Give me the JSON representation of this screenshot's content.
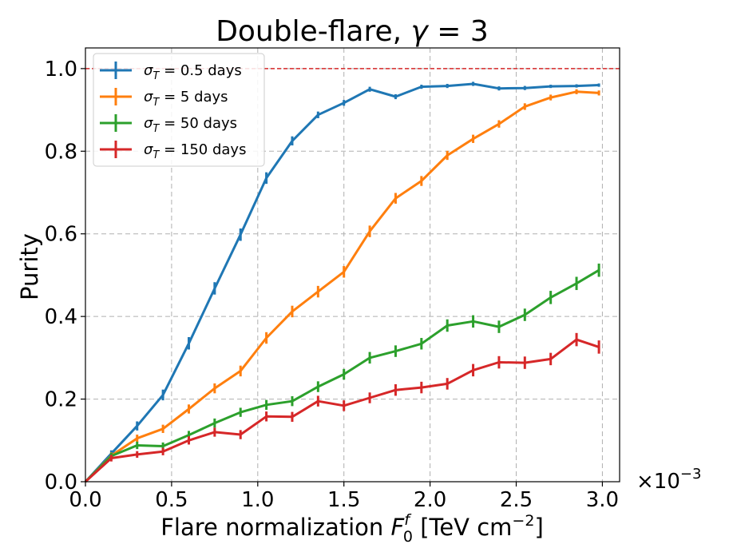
{
  "chart_data": {
    "type": "line",
    "title": "Double-flare, γ = 3",
    "title_parts": {
      "prefix": "Double-flare, ",
      "symbol": "γ",
      "suffix": " = 3"
    },
    "xlabel": "Flare normalization F₀ᶠ [TeV cm⁻²]",
    "xlabel_parts": {
      "prefix": "Flare normalization ",
      "symbol": "F",
      "sup": "f",
      "sub": "0",
      "unit_prefix": " [TeV cm",
      "unit_sup": "−2",
      "unit_suffix": "]"
    },
    "ylabel": "Purity",
    "x_scale_label": "×10−3",
    "x_scale_parts": {
      "base": "×10",
      "exp": "−3"
    },
    "xlim": [
      0.0,
      3.1
    ],
    "ylim": [
      0.0,
      1.05
    ],
    "xticks": [
      0.0,
      0.5,
      1.0,
      1.5,
      2.0,
      2.5,
      3.0
    ],
    "xtick_labels": [
      "0.0",
      "0.5",
      "1.0",
      "1.5",
      "2.0",
      "2.5",
      "3.0"
    ],
    "yticks": [
      0.0,
      0.2,
      0.4,
      0.6,
      0.8,
      1.0
    ],
    "ytick_labels": [
      "0.0",
      "0.2",
      "0.4",
      "0.6",
      "0.8",
      "1.0"
    ],
    "grid": true,
    "legend_position": "top-left",
    "reference_line": {
      "y": 1.0,
      "color": "#d62728"
    },
    "series": [
      {
        "name": "σT = 0.5 days",
        "label_parts": {
          "sym": "σ",
          "sub": "T",
          "rest": " = 0.5 days"
        },
        "color": "#1f77b4",
        "x": [
          0.0,
          0.15,
          0.3,
          0.45,
          0.6,
          0.75,
          0.9,
          1.05,
          1.2,
          1.35,
          1.5,
          1.65,
          1.8,
          1.95,
          2.1,
          2.25,
          2.4,
          2.55,
          2.7,
          2.85,
          2.98
        ],
        "y": [
          0.0,
          0.068,
          0.135,
          0.21,
          0.335,
          0.468,
          0.598,
          0.735,
          0.825,
          0.888,
          0.917,
          0.95,
          0.932,
          0.956,
          0.958,
          0.963,
          0.952,
          0.953,
          0.957,
          0.958,
          0.96
        ],
        "yerr": [
          0.0,
          0.008,
          0.011,
          0.013,
          0.015,
          0.015,
          0.015,
          0.014,
          0.011,
          0.008,
          0.007,
          0.006,
          0.006,
          0.005,
          0.005,
          0.005,
          0.005,
          0.005,
          0.004,
          0.004,
          0.004
        ]
      },
      {
        "name": "σT = 5 days",
        "label_parts": {
          "sym": "σ",
          "sub": "T",
          "rest": " = 5 days"
        },
        "color": "#ff7f0e",
        "x": [
          0.0,
          0.15,
          0.3,
          0.45,
          0.6,
          0.75,
          0.9,
          1.05,
          1.2,
          1.35,
          1.5,
          1.65,
          1.8,
          1.95,
          2.1,
          2.25,
          2.4,
          2.55,
          2.7,
          2.85,
          2.98
        ],
        "y": [
          0.0,
          0.063,
          0.105,
          0.128,
          0.176,
          0.226,
          0.268,
          0.348,
          0.412,
          0.46,
          0.508,
          0.606,
          0.686,
          0.728,
          0.79,
          0.83,
          0.866,
          0.908,
          0.93,
          0.944,
          0.941
        ],
        "yerr": [
          0.0,
          0.008,
          0.009,
          0.01,
          0.011,
          0.012,
          0.013,
          0.014,
          0.014,
          0.014,
          0.014,
          0.014,
          0.013,
          0.012,
          0.011,
          0.01,
          0.009,
          0.008,
          0.007,
          0.006,
          0.006
        ]
      },
      {
        "name": "σT = 50 days",
        "label_parts": {
          "sym": "σ",
          "sub": "T",
          "rest": " = 50 days"
        },
        "color": "#2ca02c",
        "x": [
          0.0,
          0.15,
          0.3,
          0.45,
          0.6,
          0.75,
          0.9,
          1.05,
          1.2,
          1.35,
          1.5,
          1.65,
          1.8,
          1.95,
          2.1,
          2.25,
          2.4,
          2.55,
          2.7,
          2.85,
          2.98
        ],
        "y": [
          0.0,
          0.062,
          0.088,
          0.086,
          0.113,
          0.142,
          0.168,
          0.186,
          0.195,
          0.23,
          0.26,
          0.3,
          0.316,
          0.334,
          0.378,
          0.388,
          0.375,
          0.404,
          0.446,
          0.48,
          0.512
        ],
        "yerr": [
          0.0,
          0.008,
          0.009,
          0.009,
          0.01,
          0.011,
          0.011,
          0.012,
          0.012,
          0.013,
          0.013,
          0.014,
          0.014,
          0.014,
          0.015,
          0.015,
          0.015,
          0.015,
          0.016,
          0.016,
          0.016
        ]
      },
      {
        "name": "σT = 150 days",
        "label_parts": {
          "sym": "σ",
          "sub": "T",
          "rest": " = 150 days"
        },
        "color": "#d62728",
        "x": [
          0.0,
          0.15,
          0.3,
          0.45,
          0.6,
          0.75,
          0.9,
          1.05,
          1.2,
          1.35,
          1.5,
          1.65,
          1.8,
          1.95,
          2.1,
          2.25,
          2.4,
          2.55,
          2.7,
          2.85,
          2.98
        ],
        "y": [
          0.0,
          0.057,
          0.066,
          0.073,
          0.1,
          0.12,
          0.114,
          0.158,
          0.157,
          0.195,
          0.184,
          0.203,
          0.222,
          0.228,
          0.237,
          0.27,
          0.289,
          0.288,
          0.297,
          0.344,
          0.326
        ],
        "yerr": [
          0.0,
          0.008,
          0.008,
          0.009,
          0.01,
          0.011,
          0.011,
          0.012,
          0.012,
          0.013,
          0.013,
          0.013,
          0.014,
          0.014,
          0.014,
          0.015,
          0.015,
          0.015,
          0.015,
          0.016,
          0.016
        ]
      }
    ]
  }
}
